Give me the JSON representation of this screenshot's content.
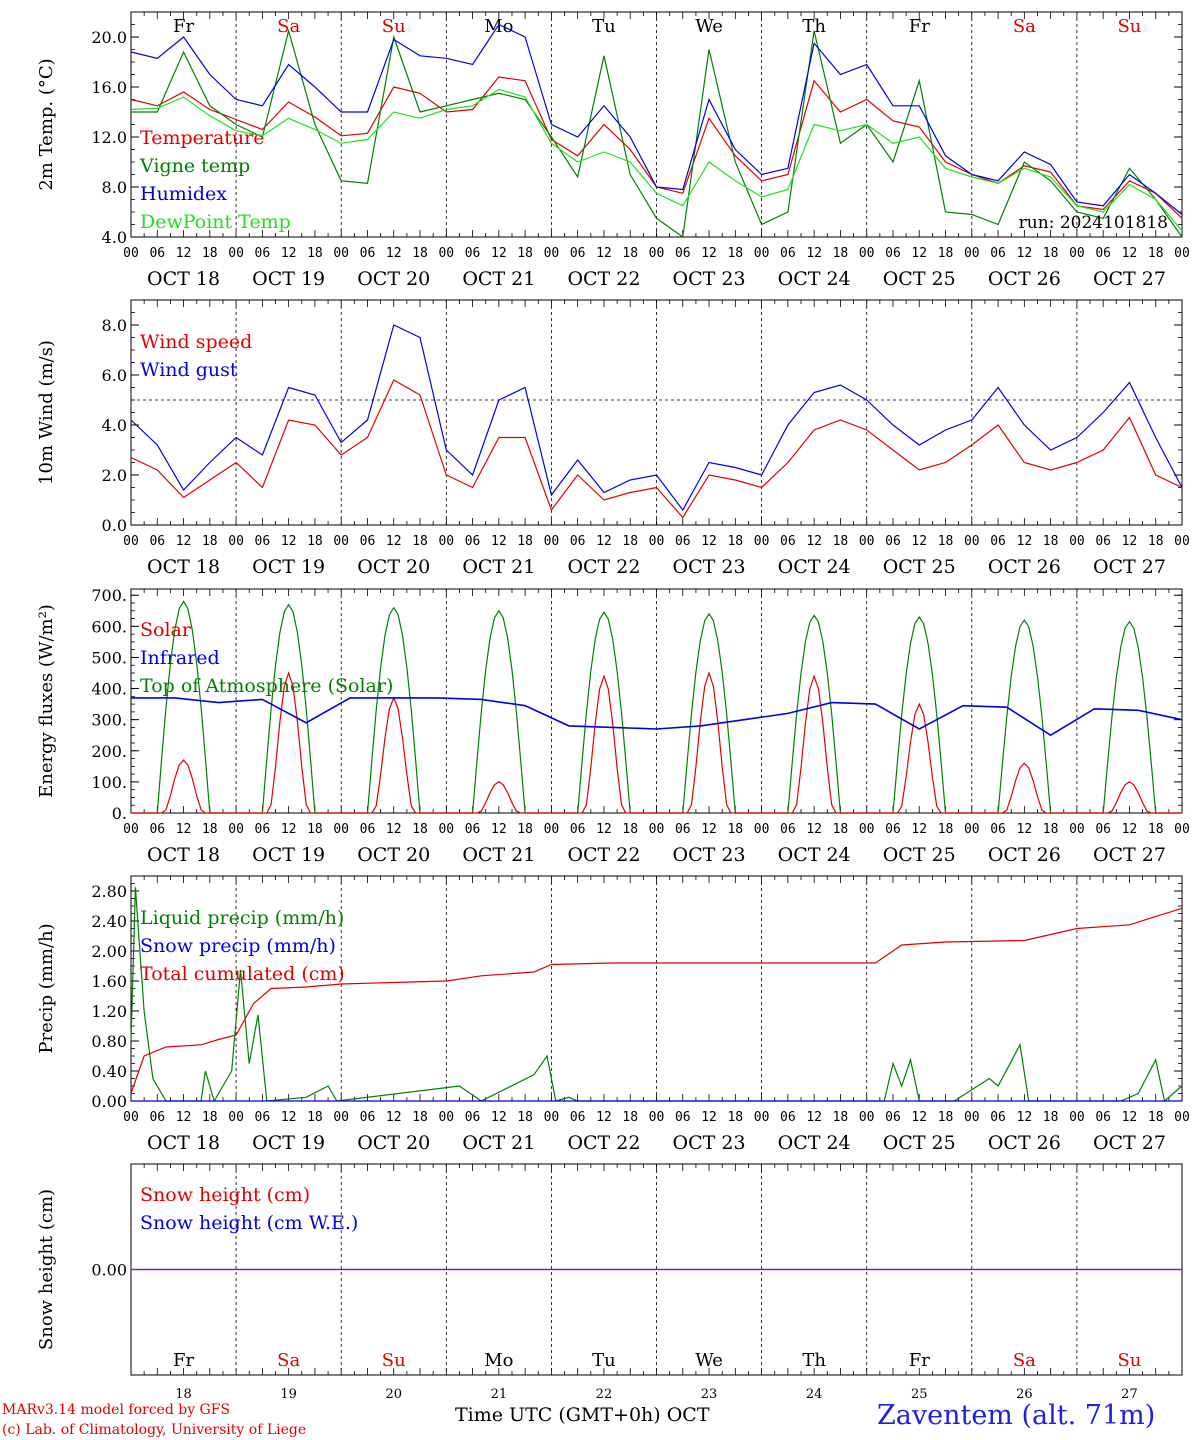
{
  "run_label": "run: 2024101818",
  "day_labels": [
    {
      "name": "Fr",
      "weekend": false
    },
    {
      "name": "Sa",
      "weekend": true
    },
    {
      "name": "Su",
      "weekend": true
    },
    {
      "name": "Mo",
      "weekend": false
    },
    {
      "name": "Tu",
      "weekend": false
    },
    {
      "name": "We",
      "weekend": false
    },
    {
      "name": "Th",
      "weekend": false
    },
    {
      "name": "Fr",
      "weekend": false
    },
    {
      "name": "Sa",
      "weekend": true
    },
    {
      "name": "Su",
      "weekend": true
    }
  ],
  "date_labels": [
    "OCT 18",
    "OCT 19",
    "OCT 20",
    "OCT 21",
    "OCT 22",
    "OCT 23",
    "OCT 24",
    "OCT 25",
    "OCT 26",
    "OCT 27"
  ],
  "day_numbers": [
    "18",
    "19",
    "20",
    "21",
    "22",
    "23",
    "24",
    "25",
    "26",
    "27"
  ],
  "hour_labels": [
    "00",
    "06",
    "12",
    "18"
  ],
  "colors": {
    "red": "#e00000",
    "green": "#008000",
    "blue": "#0000e0",
    "lightgreen": "#20e020",
    "purple": "#8020a0",
    "weekend": "#e00000"
  },
  "footer": {
    "line1": "MARv3.14 model forced by GFS",
    "line2": "(c) Lab. of Climatology, University of Liege",
    "axis_title": "Time UTC (GMT+0h) OCT",
    "station": "Zaventem (alt. 71m)"
  },
  "chart_data": [
    {
      "type": "line",
      "ylabel": "2m Temp. (°C)",
      "ylim": [
        4,
        22
      ],
      "yticks": [
        "4.0",
        "8.0",
        "12.0",
        "16.0",
        "20.0"
      ],
      "ytick_values": [
        4,
        8,
        12,
        16,
        20
      ],
      "legend": [
        "Temperature",
        "Vigne temp",
        "Humidex",
        "DewPoint Temp"
      ],
      "x_hours": [
        0,
        6,
        12,
        18,
        24,
        30,
        36,
        42,
        48,
        54,
        60,
        66,
        72,
        78,
        84,
        90,
        96,
        102,
        108,
        114,
        120,
        126,
        132,
        138,
        144,
        150,
        156,
        162,
        168,
        174,
        180,
        186,
        192,
        198,
        204,
        210,
        216,
        222,
        228,
        234,
        240
      ],
      "series": [
        {
          "name": "Temperature",
          "color": "red",
          "values": [
            15,
            14.5,
            15.6,
            14.2,
            13.4,
            12.6,
            14.8,
            13.6,
            12.1,
            12.3,
            16,
            15.5,
            14,
            14.2,
            16.8,
            16.5,
            11.8,
            10.5,
            13,
            11,
            8,
            7.5,
            13.5,
            10.5,
            8.5,
            9,
            16.5,
            14,
            15,
            13.3,
            12.8,
            10,
            9,
            8.3,
            9.7,
            9.2,
            6.5,
            6.2,
            8.5,
            7.5,
            5.5
          ]
        },
        {
          "name": "Vigne temp",
          "color": "green",
          "values": [
            14,
            14,
            18.8,
            14.5,
            13,
            12,
            20.5,
            13,
            8.5,
            8.3,
            20,
            14,
            14.5,
            15,
            15.5,
            15,
            12,
            8.8,
            18.5,
            9,
            5.5,
            4,
            19,
            10,
            5,
            6,
            20.5,
            11.5,
            13,
            10,
            16.5,
            6,
            5.8,
            5,
            10,
            8.5,
            6,
            5.5,
            9.5,
            7,
            4
          ]
        },
        {
          "name": "Humidex",
          "color": "blue",
          "values": [
            18.8,
            18.3,
            20,
            17,
            15,
            14.5,
            17.8,
            16,
            14,
            14,
            19.8,
            18.5,
            18.3,
            17.8,
            21,
            20,
            13,
            12,
            14.5,
            12,
            8,
            7.8,
            15,
            11,
            9,
            9.5,
            19.5,
            17,
            17.8,
            14.5,
            14.5,
            10.5,
            9,
            8.5,
            10.8,
            9.8,
            6.8,
            6.5,
            9,
            7.5,
            5.8
          ]
        },
        {
          "name": "DewPoint Temp",
          "color": "lightgreen",
          "values": [
            14.2,
            14.3,
            15.2,
            13.7,
            12.5,
            12.1,
            13.5,
            12.6,
            11.5,
            11.8,
            14,
            13.5,
            14.2,
            14.5,
            15.8,
            15.2,
            11.5,
            10,
            10.8,
            10,
            7.5,
            6.5,
            10,
            8.5,
            7.2,
            7.8,
            13,
            12.5,
            13,
            11.5,
            12,
            9.5,
            8.8,
            8.3,
            9.5,
            8.8,
            6.5,
            6,
            8.2,
            7,
            4.5
          ]
        }
      ]
    },
    {
      "type": "line",
      "ylabel": "10m Wind (m/s)",
      "ylim": [
        0,
        9
      ],
      "yticks": [
        "0.0",
        "2.0",
        "4.0",
        "6.0",
        "8.0"
      ],
      "ytick_values": [
        0,
        2,
        4,
        6,
        8
      ],
      "reference_line": 5,
      "legend": [
        "Wind speed",
        "Wind gust"
      ],
      "x_hours": [
        0,
        6,
        12,
        18,
        24,
        30,
        36,
        42,
        48,
        54,
        60,
        66,
        72,
        78,
        84,
        90,
        96,
        102,
        108,
        114,
        120,
        126,
        132,
        138,
        144,
        150,
        156,
        162,
        168,
        174,
        180,
        186,
        192,
        198,
        204,
        210,
        216,
        222,
        228,
        234,
        240
      ],
      "series": [
        {
          "name": "Wind speed",
          "color": "red",
          "values": [
            2.7,
            2.2,
            1.1,
            1.8,
            2.5,
            1.5,
            4.2,
            4,
            2.8,
            3.5,
            5.8,
            5.2,
            2,
            1.5,
            3.5,
            3.5,
            0.6,
            2,
            1,
            1.3,
            1.5,
            0.3,
            2,
            1.8,
            1.5,
            2.5,
            3.8,
            4.2,
            3.8,
            3,
            2.2,
            2.5,
            3.2,
            4,
            2.5,
            2.2,
            2.5,
            3,
            4.3,
            2,
            1.5
          ]
        },
        {
          "name": "Wind gust",
          "color": "blue",
          "values": [
            4.2,
            3.2,
            1.4,
            2.5,
            3.5,
            2.8,
            5.5,
            5.2,
            3.3,
            4.2,
            8,
            7.5,
            3,
            2,
            5,
            5.5,
            1.2,
            2.6,
            1.3,
            1.8,
            2,
            0.6,
            2.5,
            2.3,
            2,
            4,
            5.3,
            5.6,
            5,
            4,
            3.2,
            3.8,
            4.2,
            5.5,
            4,
            3,
            3.5,
            4.5,
            5.7,
            3.5,
            1.5
          ]
        }
      ]
    },
    {
      "type": "line",
      "ylabel": "Energy fluxes (W/m²)",
      "ylim": [
        0,
        720
      ],
      "yticks": [
        "0.",
        "100.",
        "200.",
        "300.",
        "400.",
        "500.",
        "600.",
        "700."
      ],
      "ytick_values": [
        0,
        100,
        200,
        300,
        400,
        500,
        600,
        700
      ],
      "legend": [
        "Solar",
        "Infrared",
        "Top of Atmosphere (Solar)"
      ],
      "solar_peaks": [
        170,
        450,
        370,
        100,
        440,
        450,
        440,
        350,
        160,
        100
      ],
      "toa_peaks": [
        680,
        670,
        660,
        650,
        645,
        640,
        635,
        630,
        620,
        615
      ],
      "infrared_values": [
        370,
        370,
        355,
        365,
        290,
        370,
        370,
        370,
        365,
        345,
        280,
        275,
        270,
        280,
        300,
        320,
        355,
        350,
        270,
        345,
        340,
        250,
        335,
        330,
        300
      ]
    },
    {
      "type": "line",
      "ylabel": "Precip (mm/h)",
      "ylim": [
        0,
        3
      ],
      "yticks": [
        "0.00",
        "0.40",
        "0.80",
        "1.20",
        "1.60",
        "2.00",
        "2.40",
        "2.80"
      ],
      "ytick_values": [
        0,
        0.4,
        0.8,
        1.2,
        1.6,
        2.0,
        2.4,
        2.8
      ],
      "legend": [
        "Liquid precip (mm/h)",
        "Snow precip (mm/h)",
        "Total cumulated (cm)"
      ],
      "cumulated": [
        [
          0,
          0.1
        ],
        [
          3,
          0.6
        ],
        [
          8,
          0.72
        ],
        [
          16,
          0.75
        ],
        [
          20,
          0.82
        ],
        [
          24,
          0.88
        ],
        [
          28,
          1.3
        ],
        [
          32,
          1.5
        ],
        [
          40,
          1.52
        ],
        [
          48,
          1.56
        ],
        [
          60,
          1.58
        ],
        [
          72,
          1.6
        ],
        [
          80,
          1.67
        ],
        [
          92,
          1.72
        ],
        [
          96,
          1.82
        ],
        [
          110,
          1.84
        ],
        [
          170,
          1.84
        ],
        [
          176,
          2.08
        ],
        [
          186,
          2.12
        ],
        [
          204,
          2.14
        ],
        [
          210,
          2.22
        ],
        [
          216,
          2.3
        ],
        [
          228,
          2.35
        ],
        [
          240,
          2.57
        ]
      ],
      "liquid": [
        [
          0,
          0.8
        ],
        [
          1,
          2.85
        ],
        [
          3,
          1.2
        ],
        [
          5,
          0.3
        ],
        [
          8,
          0
        ],
        [
          16,
          0
        ],
        [
          17,
          0.4
        ],
        [
          19,
          0
        ],
        [
          23,
          0.4
        ],
        [
          25,
          1.75
        ],
        [
          27,
          0.5
        ],
        [
          29,
          1.15
        ],
        [
          31,
          0
        ],
        [
          40,
          0.05
        ],
        [
          45,
          0.2
        ],
        [
          47,
          0
        ],
        [
          75,
          0.2
        ],
        [
          80,
          0
        ],
        [
          92,
          0.35
        ],
        [
          95,
          0.6
        ],
        [
          97,
          0
        ],
        [
          100,
          0.05
        ],
        [
          102,
          0
        ],
        [
          172,
          0
        ],
        [
          174,
          0.5
        ],
        [
          176,
          0.2
        ],
        [
          178,
          0.55
        ],
        [
          180,
          0
        ],
        [
          188,
          0
        ],
        [
          196,
          0.3
        ],
        [
          198,
          0.2
        ],
        [
          203,
          0.75
        ],
        [
          205,
          0
        ],
        [
          226,
          0
        ],
        [
          230,
          0.1
        ],
        [
          234,
          0.55
        ],
        [
          236,
          0
        ],
        [
          240,
          0.2
        ]
      ]
    },
    {
      "type": "line",
      "ylabel": "Snow height (cm)",
      "ylim": [
        -1,
        1
      ],
      "yticks": [
        "0.00"
      ],
      "ytick_values": [
        0
      ],
      "legend": [
        "Snow height (cm)",
        "Snow height (cm W.E.)"
      ],
      "values": [
        0,
        0
      ]
    }
  ]
}
